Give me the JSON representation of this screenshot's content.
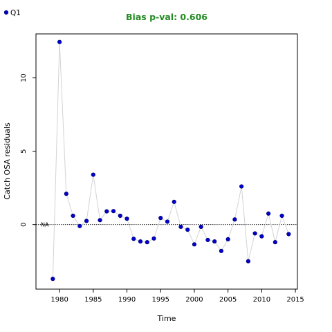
{
  "chart_data": {
    "type": "scatter",
    "subtitle": "Bias p-val: 0.606",
    "xlabel": "Time",
    "ylabel": "Catch OSA residuals",
    "xlim": [
      1976.5,
      2015.3
    ],
    "ylim": [
      -4.4,
      13.0
    ],
    "x_ticks": [
      1980,
      1985,
      1990,
      1995,
      2000,
      2005,
      2010,
      2015
    ],
    "y_ticks": [
      0,
      5,
      10
    ],
    "reference_line": 0,
    "reference_label": "NA",
    "grid": false,
    "legend_position": "top-left",
    "series": [
      {
        "name": "Q1",
        "color": "#0000cd",
        "line_color": "#d3d3d3",
        "x": [
          1979,
          1980,
          1981,
          1982,
          1983,
          1984,
          1985,
          1986,
          1987,
          1988,
          1989,
          1990,
          1991,
          1992,
          1993,
          1994,
          1995,
          1996,
          1997,
          1998,
          1999,
          2000,
          2001,
          2002,
          2003,
          2004,
          2005,
          2006,
          2007,
          2008,
          2009,
          2010,
          2011,
          2012,
          2013,
          2014
        ],
        "y": [
          -3.7,
          12.45,
          2.1,
          0.6,
          -0.1,
          0.25,
          3.4,
          0.3,
          0.9,
          0.92,
          0.6,
          0.4,
          -0.97,
          -1.15,
          -1.2,
          -0.95,
          0.45,
          0.2,
          1.55,
          -0.15,
          -0.35,
          -1.35,
          -0.15,
          -1.05,
          -1.15,
          -1.8,
          -1.0,
          0.35,
          2.6,
          -2.5,
          -0.6,
          -0.8,
          0.75,
          -1.2,
          0.6,
          -0.65
        ]
      }
    ]
  },
  "colors": {
    "subtitle": "#228b22",
    "point": "#0000cd",
    "line": "#d3d3d3"
  }
}
